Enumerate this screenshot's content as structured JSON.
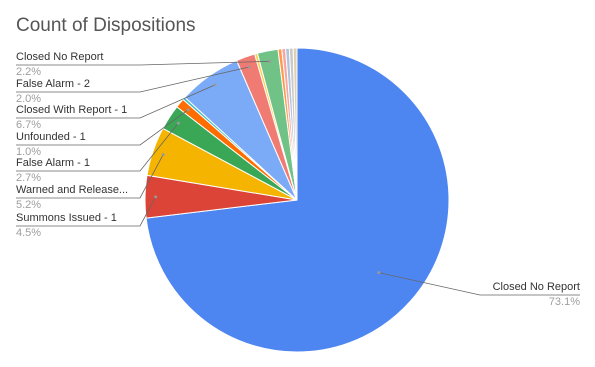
{
  "chart_data": {
    "type": "pie",
    "title": "Count of Dispositions",
    "categories": [
      "Closed No Report",
      "Summons Issued - 1",
      "Warned and Release...",
      "False Alarm - 1",
      "Unfounded - 1",
      null,
      "Closed With Report - 1",
      "False Alarm - 2",
      null,
      "Closed No Report",
      null,
      null,
      null,
      null,
      null
    ],
    "values": [
      73.1,
      4.5,
      5.2,
      2.7,
      1.0,
      0.3,
      6.7,
      2.0,
      0.3,
      2.2,
      0.4,
      0.4,
      0.4,
      0.4,
      0.4
    ],
    "value_labels": [
      "73.1%",
      "4.5%",
      "5.2%",
      "2.7%",
      "1.0%",
      null,
      "6.7%",
      "2.0%",
      null,
      "2.2%",
      null,
      null,
      null,
      null,
      null
    ],
    "colors": [
      "#4e86f1",
      "#db4437",
      "#f4b400",
      "#3aa757",
      "#ff6d00",
      "#46bdc6",
      "#7baaf7",
      "#f07b72",
      "#fcd04f",
      "#71c287",
      "#ff994d",
      "#f7a7a1",
      "#b0c4de",
      "#c9c9c9",
      "#e0d0b0"
    ]
  }
}
